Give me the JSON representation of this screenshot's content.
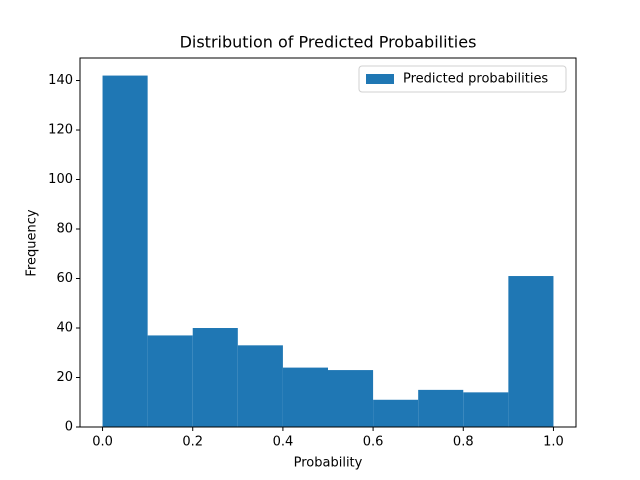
{
  "chart_data": {
    "type": "histogram",
    "title": "Distribution of Predicted Probabilities",
    "x_label": "Probability",
    "y_label": "Frequency",
    "bins": [
      0.0,
      0.1,
      0.2,
      0.3,
      0.4,
      0.5,
      0.6,
      0.7,
      0.8,
      0.9,
      1.0
    ],
    "series": [
      {
        "name": "Predicted probabilities",
        "color": "#1f77b4",
        "values": [
          142,
          37,
          40,
          33,
          24,
          23,
          11,
          15,
          14,
          61
        ]
      }
    ],
    "xlim": [
      -0.05,
      1.05
    ],
    "xticks": [
      {
        "value": 0,
        "label": "0.0"
      },
      0.2,
      0.4,
      0.6,
      0.8,
      {
        "value": 1,
        "label": "1.0"
      }
    ],
    "ylim": [
      0,
      149.1
    ],
    "yticks": [
      0,
      20,
      40,
      60,
      80,
      100,
      120,
      140
    ],
    "legend": "upper right"
  }
}
